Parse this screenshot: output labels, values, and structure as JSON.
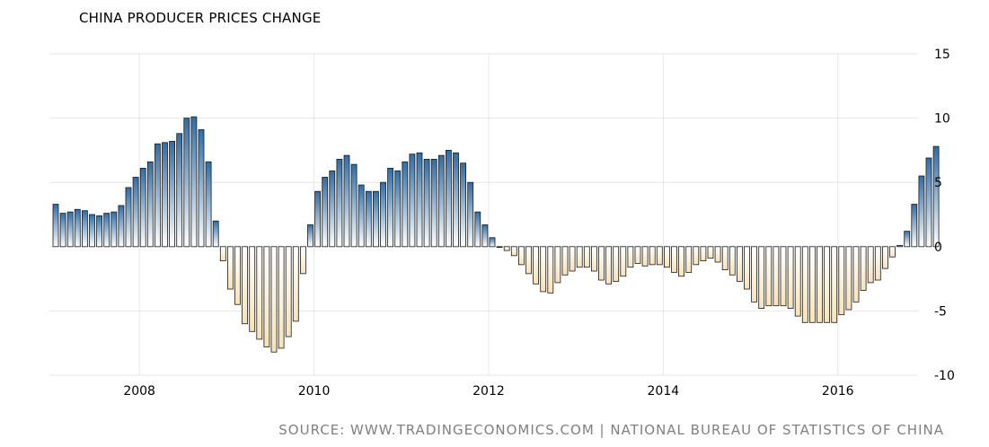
{
  "title": "CHINA PRODUCER PRICES CHANGE",
  "source": "SOURCE: WWW.TRADINGECONOMICS.COM | NATIONAL BUREAU OF STATISTICS OF CHINA",
  "colors": {
    "positive_top": "#2f6da8",
    "positive_bottom": "#ffffff",
    "negative_top": "#ffffff",
    "negative_bottom": "#f8e2b8",
    "bar_stroke": "#1a1a1a",
    "grid": "#e6e6e6",
    "title": "#000000",
    "source": "#808080"
  },
  "chart_data": {
    "type": "bar",
    "title": "CHINA PRODUCER PRICES CHANGE",
    "xlabel": "",
    "ylabel": "",
    "frequency": "monthly",
    "start": "2007-01",
    "end": "2017-02",
    "ylim": [
      -10,
      15
    ],
    "yticks": [
      15,
      10,
      5,
      0,
      -5,
      -10
    ],
    "ytick_labels": [
      "15",
      "10",
      "5",
      "0",
      "-5",
      "-10"
    ],
    "xticks": [
      "2008",
      "2010",
      "2012",
      "2014",
      "2016"
    ],
    "y_axis_position": "right",
    "grid": true,
    "legend": "none",
    "values": [
      3.3,
      2.6,
      2.7,
      2.9,
      2.8,
      2.5,
      2.4,
      2.6,
      2.7,
      3.2,
      4.6,
      5.4,
      6.1,
      6.6,
      8.0,
      8.1,
      8.2,
      8.8,
      10.0,
      10.1,
      9.1,
      6.6,
      2.0,
      -1.1,
      -3.3,
      -4.5,
      -6.0,
      -6.6,
      -7.2,
      -7.8,
      -8.2,
      -7.9,
      -7.0,
      -5.8,
      -2.1,
      1.7,
      4.3,
      5.4,
      5.9,
      6.8,
      7.1,
      6.4,
      4.8,
      4.3,
      4.3,
      5.0,
      6.1,
      5.9,
      6.6,
      7.2,
      7.3,
      6.8,
      6.8,
      7.1,
      7.5,
      7.3,
      6.5,
      5.0,
      2.7,
      1.7,
      0.7,
      0.0,
      -0.3,
      -0.7,
      -1.4,
      -2.1,
      -2.9,
      -3.5,
      -3.6,
      -2.8,
      -2.2,
      -1.9,
      -1.6,
      -1.6,
      -1.9,
      -2.6,
      -2.9,
      -2.7,
      -2.3,
      -1.6,
      -1.3,
      -1.5,
      -1.4,
      -1.4,
      -1.6,
      -2.0,
      -2.3,
      -2.0,
      -1.4,
      -1.1,
      -0.9,
      -1.2,
      -1.8,
      -2.2,
      -2.7,
      -3.3,
      -4.3,
      -4.8,
      -4.6,
      -4.6,
      -4.6,
      -4.8,
      -5.4,
      -5.9,
      -5.9,
      -5.9,
      -5.9,
      -5.9,
      -5.3,
      -4.9,
      -4.3,
      -3.4,
      -2.8,
      -2.6,
      -1.7,
      -0.8,
      0.1,
      1.2,
      3.3,
      5.5,
      6.9,
      7.8
    ]
  }
}
